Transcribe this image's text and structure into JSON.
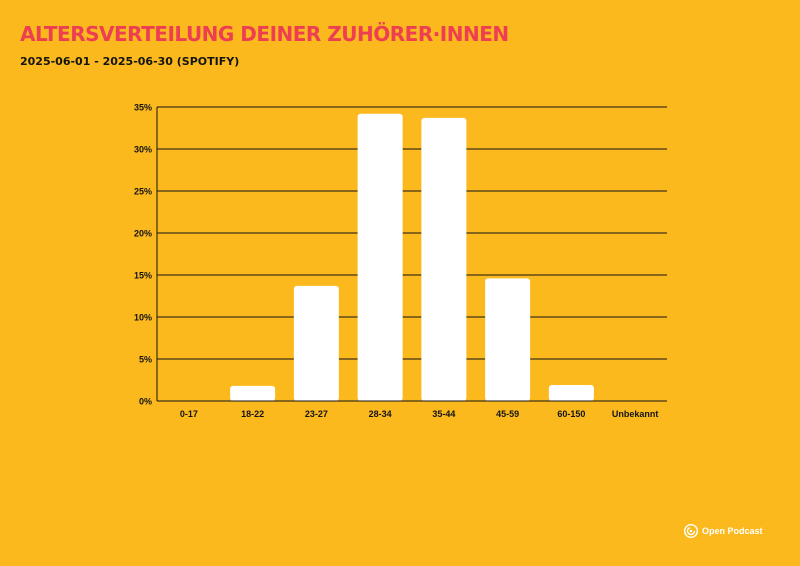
{
  "header": {
    "title": "Altersverteilung deiner Zuhörer·innen",
    "subtitle": "2025-06-01 - 2025-06-30 (SPOTIFY)"
  },
  "brand": {
    "name": "Open Podcast"
  },
  "colors": {
    "background": "#FBB91E",
    "title": "#EE3F52",
    "bar": "#FFFFFF",
    "axis": "#141414",
    "grid": "#141414"
  },
  "chart_data": {
    "type": "bar",
    "categories": [
      "0-17",
      "18-22",
      "23-27",
      "28-34",
      "35-44",
      "45-59",
      "60-150",
      "Unbekannt"
    ],
    "values": [
      0,
      1.8,
      13.7,
      34.2,
      33.7,
      14.6,
      1.9,
      0
    ],
    "yticks": [
      "0%",
      "5%",
      "10%",
      "15%",
      "20%",
      "25%",
      "30%",
      "35%"
    ],
    "ylim": [
      0,
      35
    ],
    "ylabel": "",
    "xlabel": "",
    "grid": true,
    "legend": "none"
  }
}
